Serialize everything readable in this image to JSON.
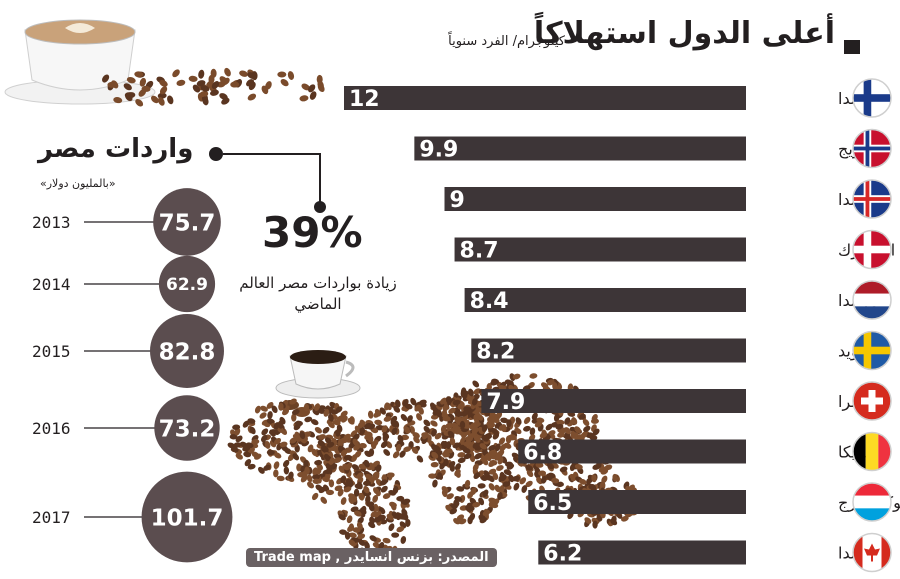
{
  "header": {
    "title": "أعلى الدول استهلاكاً",
    "unit": "كيلوجرام/ الفرد سنوياً"
  },
  "chart_data": [
    {
      "type": "bar",
      "title": "أعلى الدول استهلاكاً",
      "unit": "كيلوجرام/ الفرد سنوياً",
      "categories": [
        "فنلندا",
        "النرويج",
        "أيسلندا",
        "الدنمارك",
        "هولندا",
        "السويد",
        "سويسرا",
        "بلجيكا",
        "لوكسمبرج",
        "كندا"
      ],
      "values": [
        12,
        9.9,
        9,
        8.7,
        8.4,
        8.2,
        7.9,
        6.8,
        6.5,
        6.2
      ],
      "value_labels": [
        "12",
        "9.9",
        "9",
        "8.7",
        "8.4",
        "8.2",
        "7.9",
        "6.8",
        "6.5",
        "6.2"
      ],
      "flags": [
        "finland-flag",
        "norway-flag",
        "iceland-flag",
        "denmark-flag",
        "netherlands-flag",
        "sweden-flag",
        "switzerland-flag",
        "belgium-flag",
        "luxembourg-flag",
        "canada-flag"
      ],
      "bar_color": "#3d3537"
    },
    {
      "type": "bubble",
      "title": "واردات مصر",
      "unit": "«بالمليون دولار»",
      "categories": [
        "2013",
        "2014",
        "2015",
        "2016",
        "2017"
      ],
      "values": [
        75.7,
        62.9,
        82.8,
        73.2,
        101.7
      ],
      "value_labels": [
        "75.7",
        "62.9",
        "82.8",
        "73.2",
        "101.7"
      ],
      "bubble_color": "#5b4d4f"
    }
  ],
  "imports": {
    "title": "واردات مصر",
    "unit": "«بالمليون دولار»"
  },
  "highlight": {
    "percent": "39%",
    "text": "زيادة بواردات مصر العالم الماضي"
  },
  "source": "المصدر: بزنس انسايدر , Trade map",
  "colors": {
    "bar": "#3d3537",
    "bubble": "#5b4d4f",
    "text": "#231f20",
    "coffee": "#6b4226"
  }
}
